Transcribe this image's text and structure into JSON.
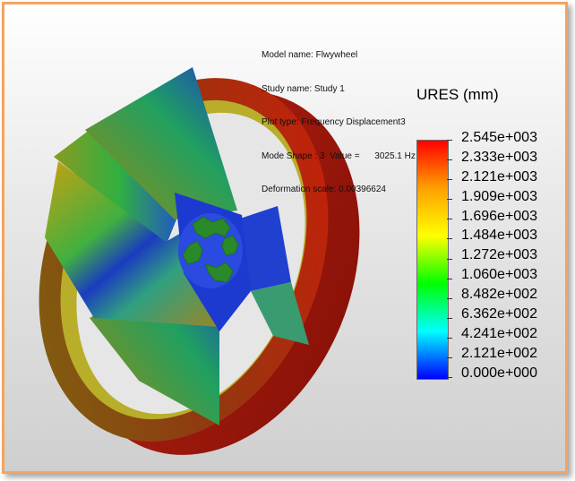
{
  "info": {
    "lines": [
      "Model name: Flwywheel",
      "Study name: Study 1",
      "Plot type: Frequency Displacement3",
      "Mode Shape : 3  Value =      3025.1 Hz",
      "Deformation scale: 0.00396624"
    ]
  },
  "legend": {
    "title": "URES (mm)",
    "labels": [
      "2.545e+003",
      "2.333e+003",
      "2.121e+003",
      "1.909e+003",
      "1.696e+003",
      "1.484e+003",
      "1.272e+003",
      "1.060e+003",
      "8.482e+002",
      "6.362e+002",
      "4.241e+002",
      "2.121e+002",
      "0.000e+000"
    ],
    "colors_top_to_bottom": [
      "#ff0000",
      "#ffa000",
      "#ffff00",
      "#00ff00",
      "#00ffff",
      "#0000ff"
    ]
  },
  "colors": {
    "frame_border": "#f4a460",
    "rim_outer": "#b01a0e",
    "rim_inner": "#b9b02a",
    "hub": "#2a7f2a"
  }
}
